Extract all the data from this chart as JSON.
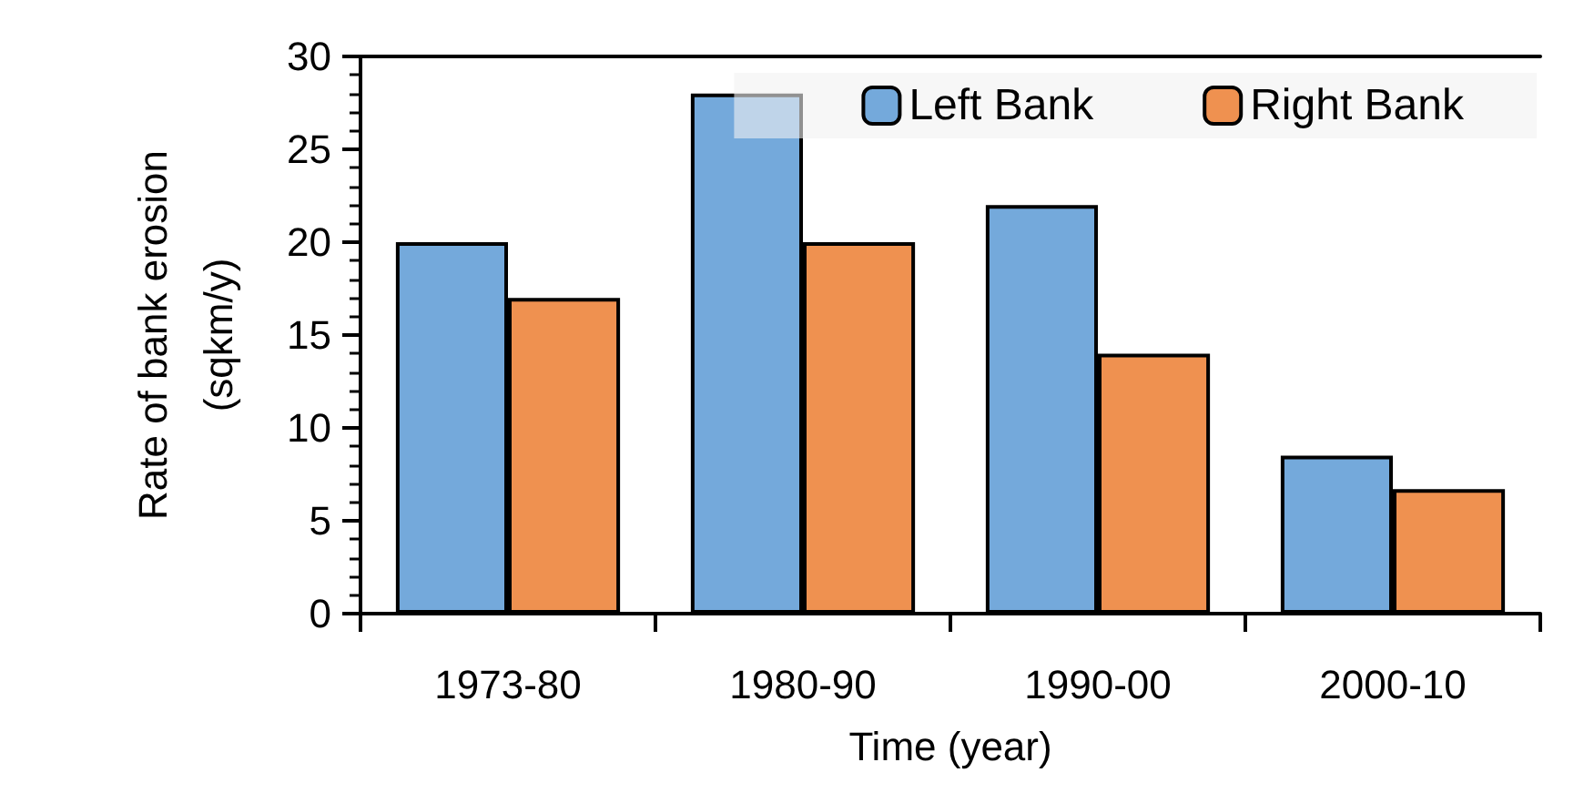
{
  "chart_data": {
    "type": "bar",
    "xlabel": "Time (year)",
    "ylabel": "Rate of bank erosion\n(sqkm/y)",
    "categories": [
      "1973-80",
      "1980-90",
      "1990-00",
      "2000-10"
    ],
    "series": [
      {
        "name": "Left Bank",
        "color": "#74a9db",
        "values": [
          20,
          28,
          22,
          8.5
        ]
      },
      {
        "name": "Right Bank",
        "color": "#ef9150",
        "values": [
          17,
          20,
          14,
          6.7
        ]
      }
    ],
    "ylim": [
      0,
      30
    ],
    "yticks": [
      0,
      5,
      10,
      15,
      20,
      25,
      30
    ],
    "grid": false,
    "legend": "top right"
  }
}
